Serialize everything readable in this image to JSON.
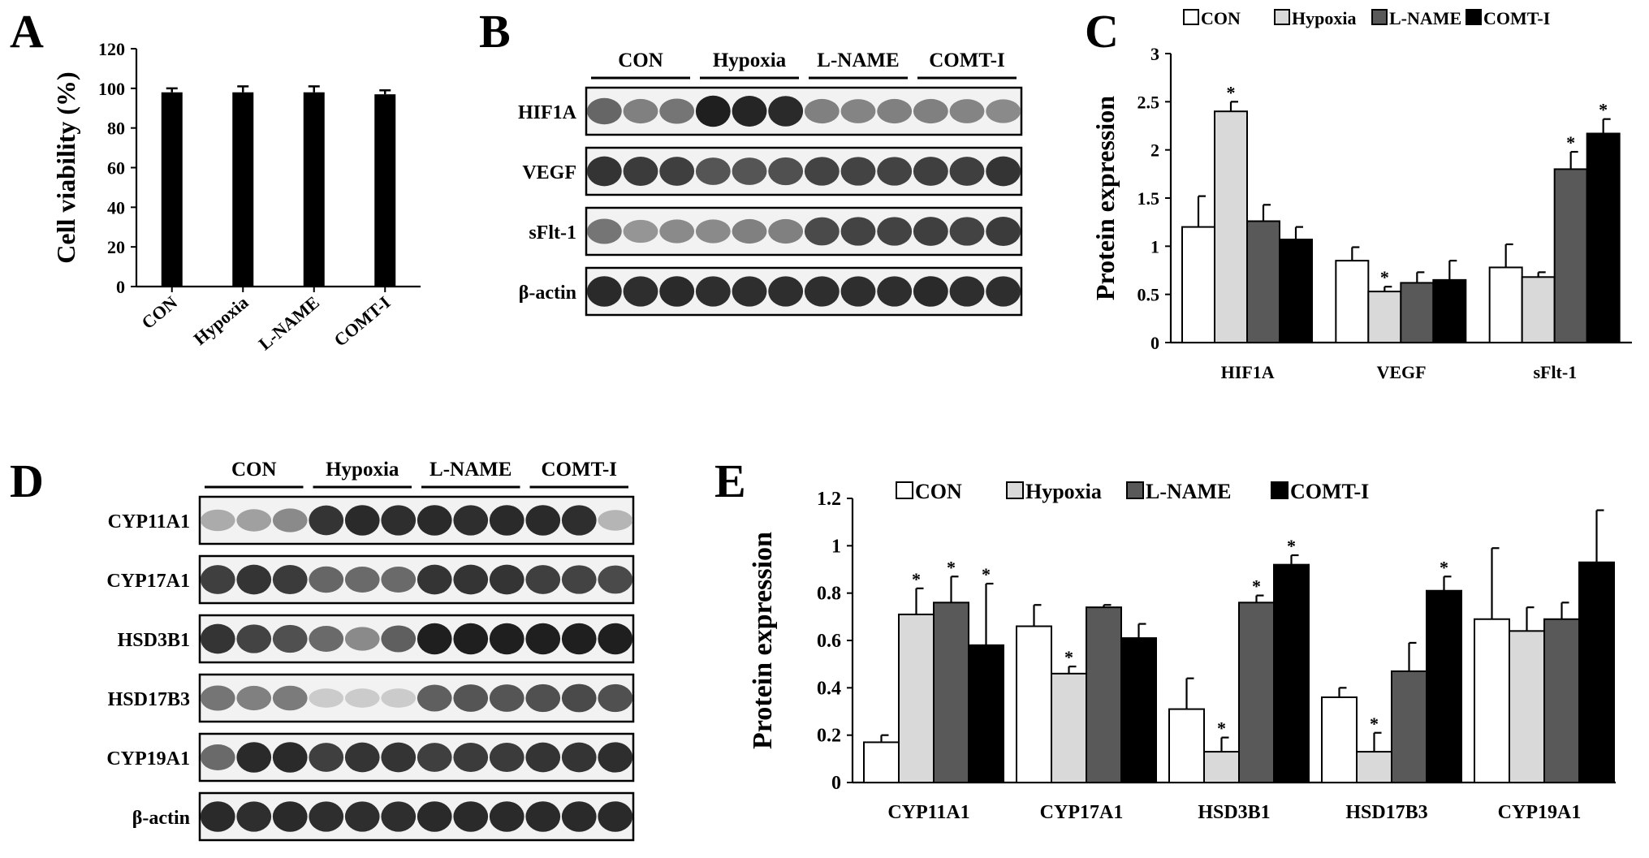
{
  "panels": {
    "A": {
      "letter": "A"
    },
    "B": {
      "letter": "B"
    },
    "C": {
      "letter": "C"
    },
    "D": {
      "letter": "D"
    },
    "E": {
      "letter": "E"
    }
  },
  "colors": {
    "CON": "#ffffff",
    "Hypoxia": "#d9d9d9",
    "L-NAME": "#595959",
    "COMT-I": "#000000"
  },
  "chart_data": [
    {
      "panel": "A",
      "type": "bar",
      "categories": [
        "CON",
        "Hypoxia",
        "L-NAME",
        "COMT-I"
      ],
      "values": [
        98,
        98,
        98,
        97
      ],
      "errors": [
        2,
        3,
        3,
        2
      ],
      "xlabel": "",
      "ylabel": "Cell viability (%)",
      "ylim": [
        0,
        120
      ],
      "yticks": [
        "0",
        "20",
        "40",
        "60",
        "80",
        "100",
        "120"
      ]
    },
    {
      "panel": "C",
      "type": "bar",
      "categories": [
        "HIF1A",
        "VEGF",
        "sFlt-1"
      ],
      "series": [
        {
          "name": "CON",
          "values": [
            1.2,
            0.85,
            0.78
          ],
          "errors": [
            0.32,
            0.14,
            0.24
          ],
          "sig": [
            false,
            false,
            false
          ]
        },
        {
          "name": "Hypoxia",
          "values": [
            2.4,
            0.53,
            0.68
          ],
          "errors": [
            0.1,
            0.05,
            0.05
          ],
          "sig": [
            true,
            true,
            false
          ]
        },
        {
          "name": "L-NAME",
          "values": [
            1.26,
            0.62,
            1.8
          ],
          "errors": [
            0.17,
            0.11,
            0.18
          ],
          "sig": [
            false,
            false,
            true
          ]
        },
        {
          "name": "COMT-I",
          "values": [
            1.07,
            0.65,
            2.17
          ],
          "errors": [
            0.13,
            0.2,
            0.15
          ],
          "sig": [
            false,
            false,
            true
          ]
        }
      ],
      "xlabel": "",
      "ylabel": "Protein expression",
      "ylim": [
        0,
        3
      ],
      "yticks": [
        "0",
        "0.5",
        "1",
        "1.5",
        "2",
        "2.5",
        "3"
      ],
      "legend": "top",
      "sig_marker": "*"
    },
    {
      "panel": "E",
      "type": "bar",
      "categories": [
        "CYP11A1",
        "CYP17A1",
        "HSD3B1",
        "HSD17B3",
        "CYP19A1"
      ],
      "series": [
        {
          "name": "CON",
          "values": [
            0.17,
            0.66,
            0.31,
            0.36,
            0.69
          ],
          "errors": [
            0.03,
            0.09,
            0.13,
            0.04,
            0.3
          ],
          "sig": [
            false,
            false,
            false,
            false,
            false
          ]
        },
        {
          "name": "Hypoxia",
          "values": [
            0.71,
            0.46,
            0.13,
            0.13,
            0.64
          ],
          "errors": [
            0.11,
            0.03,
            0.06,
            0.08,
            0.1
          ],
          "sig": [
            true,
            true,
            true,
            true,
            false
          ]
        },
        {
          "name": "L-NAME",
          "values": [
            0.76,
            0.74,
            0.76,
            0.47,
            0.69
          ],
          "errors": [
            0.11,
            0.01,
            0.03,
            0.12,
            0.07
          ],
          "sig": [
            true,
            false,
            true,
            false,
            false
          ]
        },
        {
          "name": "COMT-I",
          "values": [
            0.58,
            0.61,
            0.92,
            0.81,
            0.93
          ],
          "errors": [
            0.26,
            0.06,
            0.04,
            0.06,
            0.22
          ],
          "sig": [
            true,
            false,
            true,
            true,
            false
          ]
        }
      ],
      "xlabel": "",
      "ylabel": "Protein expression",
      "ylim": [
        0,
        1.2
      ],
      "yticks": [
        "0",
        "0.2",
        "0.4",
        "0.6",
        "0.8",
        "1",
        "1.2"
      ],
      "legend": "top",
      "sig_marker": "*"
    }
  ],
  "blots": {
    "B": {
      "groups": [
        "CON",
        "Hypoxia",
        "L-NAME",
        "COMT-I"
      ],
      "rows": [
        {
          "label": "HIF1A",
          "intensity": [
            0.62,
            0.5,
            0.55,
            0.95,
            0.92,
            0.9,
            0.5,
            0.48,
            0.5,
            0.5,
            0.48,
            0.45
          ]
        },
        {
          "label": "VEGF",
          "intensity": [
            0.85,
            0.82,
            0.8,
            0.7,
            0.7,
            0.72,
            0.78,
            0.78,
            0.78,
            0.8,
            0.8,
            0.85
          ]
        },
        {
          "label": "sFlt-1",
          "intensity": [
            0.55,
            0.4,
            0.45,
            0.45,
            0.5,
            0.5,
            0.75,
            0.78,
            0.78,
            0.8,
            0.78,
            0.82
          ]
        },
        {
          "label": "β-actin",
          "intensity": [
            0.9,
            0.88,
            0.9,
            0.88,
            0.88,
            0.88,
            0.88,
            0.88,
            0.88,
            0.9,
            0.88,
            0.88
          ]
        }
      ]
    },
    "D": {
      "groups": [
        "CON",
        "Hypoxia",
        "L-NAME",
        "COMT-I"
      ],
      "rows": [
        {
          "label": "CYP11A1",
          "intensity": [
            0.3,
            0.35,
            0.45,
            0.85,
            0.9,
            0.88,
            0.9,
            0.88,
            0.9,
            0.9,
            0.88,
            0.25
          ]
        },
        {
          "label": "CYP17A1",
          "intensity": [
            0.8,
            0.85,
            0.82,
            0.62,
            0.6,
            0.6,
            0.85,
            0.85,
            0.85,
            0.8,
            0.78,
            0.75
          ]
        },
        {
          "label": "HSD3B1",
          "intensity": [
            0.85,
            0.78,
            0.72,
            0.6,
            0.45,
            0.65,
            0.95,
            0.95,
            0.95,
            0.95,
            0.95,
            0.95
          ]
        },
        {
          "label": "HSD17B3",
          "intensity": [
            0.55,
            0.5,
            0.52,
            0.15,
            0.15,
            0.15,
            0.65,
            0.7,
            0.7,
            0.72,
            0.75,
            0.72
          ]
        },
        {
          "label": "CYP19A1",
          "intensity": [
            0.6,
            0.9,
            0.9,
            0.8,
            0.85,
            0.85,
            0.8,
            0.82,
            0.82,
            0.85,
            0.85,
            0.88
          ]
        },
        {
          "label": "β-actin",
          "intensity": [
            0.9,
            0.88,
            0.9,
            0.88,
            0.88,
            0.88,
            0.9,
            0.9,
            0.9,
            0.9,
            0.9,
            0.9
          ]
        }
      ]
    }
  }
}
